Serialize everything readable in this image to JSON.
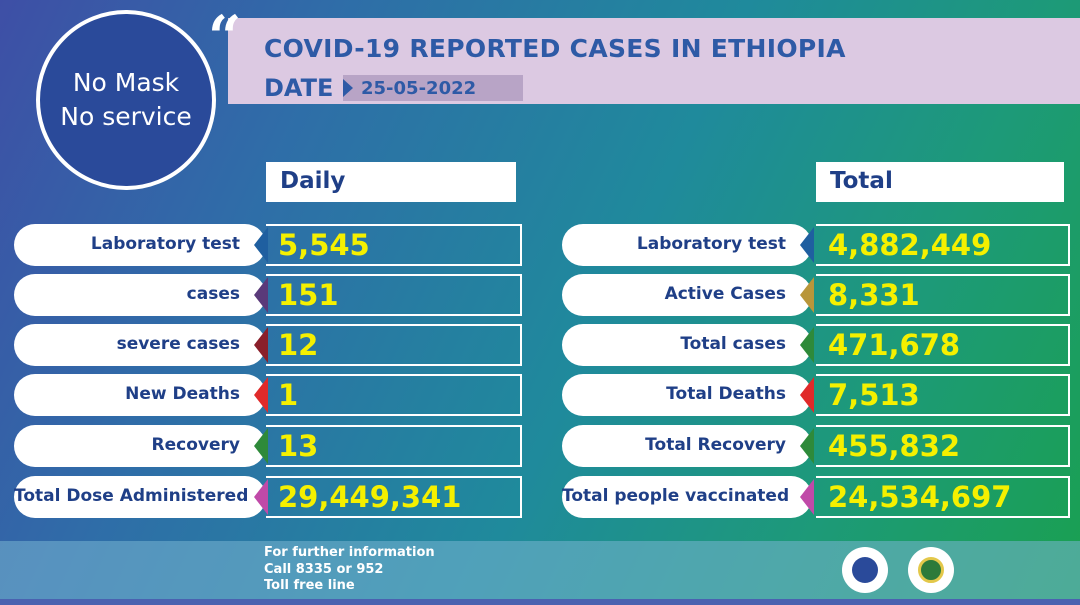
{
  "badge": {
    "line1": "No Mask",
    "line2": "No service",
    "quote_icon": "quote-mark"
  },
  "header": {
    "title": "COVID-19 REPORTED CASES IN ETHIOPIA",
    "date_label": "DATE",
    "date_value": "25-05-2022"
  },
  "daily": {
    "header": "Daily",
    "rows": [
      {
        "label": "Laboratory test",
        "value": "5,545",
        "color": "#1f5fa0"
      },
      {
        "label": "cases",
        "value": "151",
        "color": "#5a3a7a"
      },
      {
        "label": "severe cases",
        "value": "12",
        "color": "#8a1f2a"
      },
      {
        "label": "New Deaths",
        "value": "1",
        "color": "#e02a2a"
      },
      {
        "label": "Recovery",
        "value": "13",
        "color": "#2e8a3a"
      },
      {
        "label": "Total Dose Administered",
        "value": "29,449,341",
        "color": "#c04aa8"
      }
    ]
  },
  "total": {
    "header": "Total",
    "rows": [
      {
        "label": "Laboratory test",
        "value": "4,882,449",
        "color": "#1f5fa0"
      },
      {
        "label": "Active Cases",
        "value": "8,331",
        "color": "#b8963a"
      },
      {
        "label": "Total cases",
        "value": "471,678",
        "color": "#2e8a3a"
      },
      {
        "label": "Total Deaths",
        "value": "7,513",
        "color": "#e02a2a"
      },
      {
        "label": "Total Recovery",
        "value": "455,832",
        "color": "#2e8a3a"
      },
      {
        "label": "Total people vaccinated",
        "value": "24,534,697",
        "color": "#c04aa8"
      }
    ]
  },
  "footer": {
    "line1": "For further information",
    "line2": "Call 8335 or 952",
    "line3": "Toll free line",
    "logos": [
      "ministry-of-health-seal-icon",
      "public-health-institute-seal-icon"
    ]
  },
  "colors": {
    "value_text": "#f5f000",
    "label_text": "#1f3f87",
    "banner_bg": "#dcc9e2"
  }
}
